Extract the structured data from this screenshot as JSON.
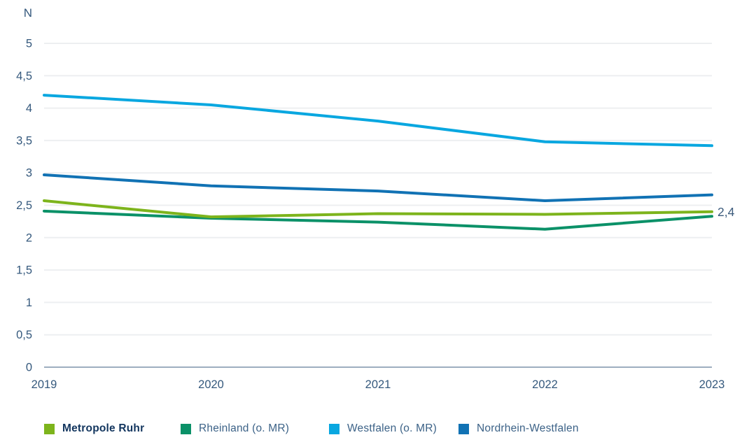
{
  "chart_data": {
    "type": "line",
    "title": "",
    "y_axis_title": "N",
    "categories": [
      "2019",
      "2020",
      "2021",
      "2022",
      "2023"
    ],
    "ylim": [
      0,
      5
    ],
    "y_tick_step": 0.5,
    "y_tick_labels": [
      "0",
      "0,5",
      "1",
      "1,5",
      "2",
      "2,5",
      "3",
      "3,5",
      "4",
      "4,5",
      "5"
    ],
    "grid": "horizontal",
    "legend_position": "bottom",
    "series": [
      {
        "name": "Metropole Ruhr",
        "color": "#7db41c",
        "bold_in_legend": true,
        "values": [
          2.57,
          2.32,
          2.37,
          2.36,
          2.4
        ],
        "end_label": "2,4"
      },
      {
        "name": "Rheinland (o. MR)",
        "color": "#0b9168",
        "bold_in_legend": false,
        "values": [
          2.41,
          2.3,
          2.24,
          2.13,
          2.33
        ],
        "end_label": ""
      },
      {
        "name": "Westfalen (o. MR)",
        "color": "#09a7e0",
        "bold_in_legend": false,
        "values": [
          4.2,
          4.05,
          3.8,
          3.48,
          3.42
        ],
        "end_label": ""
      },
      {
        "name": "Nordrhein-Westfalen",
        "color": "#1172b4",
        "bold_in_legend": false,
        "values": [
          2.97,
          2.8,
          2.72,
          2.57,
          2.66
        ],
        "end_label": ""
      }
    ],
    "colors": {
      "axis_line": "#7e94aa",
      "gridline": "#edeff1",
      "tick_label": "#35597d",
      "end_label": "#3a5a7b"
    }
  }
}
